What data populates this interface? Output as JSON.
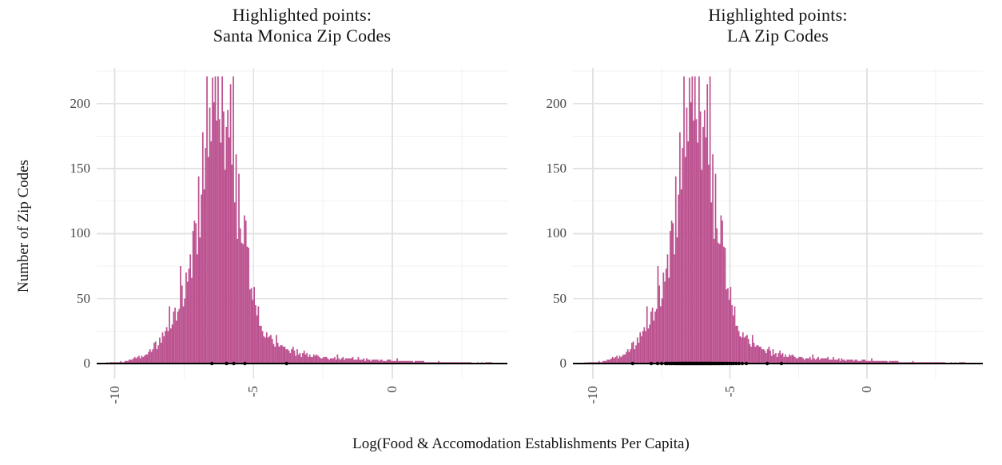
{
  "chart_data": {
    "type": "histogram",
    "xlabel": "Log(Food & Accomodation Establishments Per Capita)",
    "ylabel": "Number of Zip Codes",
    "xlim": [
      -10.7,
      4.2
    ],
    "ylim": [
      -11,
      228
    ],
    "x_axis": {
      "major_tick_values": [
        -10,
        -5,
        0
      ],
      "major_tick_labels": [
        "-10",
        "-5",
        "0"
      ],
      "minor_tick_values": [
        -7.5,
        -2.5,
        2.5
      ]
    },
    "y_axis": {
      "major_tick_values": [
        0,
        50,
        100,
        150,
        200
      ],
      "major_tick_labels": [
        "0",
        "50",
        "100",
        "150",
        "200"
      ],
      "minor_tick_values": [
        25,
        75,
        125,
        175,
        225
      ]
    },
    "grid": "major-and-minor",
    "zero_line": 0,
    "shared_distribution": {
      "comment_peak": "same underlying histogram in both panels, peak ~220 zip codes near x=-6.3",
      "bin_width": 0.05,
      "x_start": -10.45,
      "x_end": 3.8,
      "envelope_points": [
        [
          -10.45,
          0.3
        ],
        [
          -10.0,
          0.8
        ],
        [
          -9.5,
          2
        ],
        [
          -9.0,
          6
        ],
        [
          -8.5,
          14
        ],
        [
          -8.0,
          30
        ],
        [
          -7.5,
          55
        ],
        [
          -7.2,
          85
        ],
        [
          -7.0,
          115
        ],
        [
          -6.8,
          148
        ],
        [
          -6.6,
          178
        ],
        [
          -6.45,
          196
        ],
        [
          -6.3,
          206
        ],
        [
          -6.15,
          200
        ],
        [
          -6.0,
          186
        ],
        [
          -5.8,
          162
        ],
        [
          -5.6,
          131
        ],
        [
          -5.4,
          106
        ],
        [
          -5.2,
          78
        ],
        [
          -5.0,
          50
        ],
        [
          -4.8,
          34
        ],
        [
          -4.5,
          21
        ],
        [
          -4.0,
          13
        ],
        [
          -3.5,
          8
        ],
        [
          -3.0,
          6
        ],
        [
          -2.5,
          5
        ],
        [
          -2.0,
          4
        ],
        [
          -1.5,
          3.5
        ],
        [
          -1.0,
          3
        ],
        [
          -0.5,
          2.6
        ],
        [
          0.0,
          2.4
        ],
        [
          0.5,
          2
        ],
        [
          1.0,
          1.6
        ],
        [
          1.5,
          1.2
        ],
        [
          2.0,
          0.8
        ],
        [
          2.5,
          0.8
        ],
        [
          3.0,
          0.5
        ],
        [
          3.5,
          0.6
        ],
        [
          3.8,
          0.3
        ]
      ],
      "max_count": 221,
      "render_hints": {
        "noise_seed": 42,
        "noise_min": 0.75,
        "noise_span": 0.5,
        "spike_prob": 0.06,
        "spike_boost": 0.45
      }
    },
    "panels": [
      {
        "id": "left",
        "title_lines": [
          "Highlighted points:",
          "Santa Monica Zip Codes"
        ],
        "highlighted_points_x": [
          -6.5,
          -5.97,
          -5.71,
          -5.31,
          -3.81
        ]
      },
      {
        "id": "right",
        "title_lines": [
          "Highlighted points:",
          "LA Zip Codes"
        ],
        "highlighted_points_x": [
          -8.55,
          -7.87,
          -7.64,
          -7.49,
          -7.35,
          -7.28,
          -7.2,
          -7.13,
          -7.06,
          -7.0,
          -6.95,
          -6.9,
          -6.85,
          -6.8,
          -6.76,
          -6.72,
          -6.68,
          -6.64,
          -6.6,
          -6.56,
          -6.52,
          -6.48,
          -6.44,
          -6.4,
          -6.36,
          -6.32,
          -6.28,
          -6.24,
          -6.2,
          -6.16,
          -6.12,
          -6.08,
          -6.04,
          -6.0,
          -5.96,
          -5.92,
          -5.88,
          -5.84,
          -5.8,
          -5.76,
          -5.72,
          -5.67,
          -5.62,
          -5.57,
          -5.52,
          -5.47,
          -5.42,
          -5.37,
          -5.31,
          -5.25,
          -5.18,
          -5.1,
          -5.02,
          -4.94,
          -4.86,
          -4.77,
          -4.67,
          -4.55,
          -4.4,
          -3.64,
          -3.12
        ]
      }
    ]
  },
  "style": {
    "bar_fill": "#bc5290",
    "grid_major": "#e3e3e3",
    "grid_minor": "#f1f1f1",
    "zero_line_color": "#000000",
    "point_color": "#000000",
    "tick_text_color": "#454545",
    "title_text_color": "#141414",
    "background": "#ffffff"
  }
}
